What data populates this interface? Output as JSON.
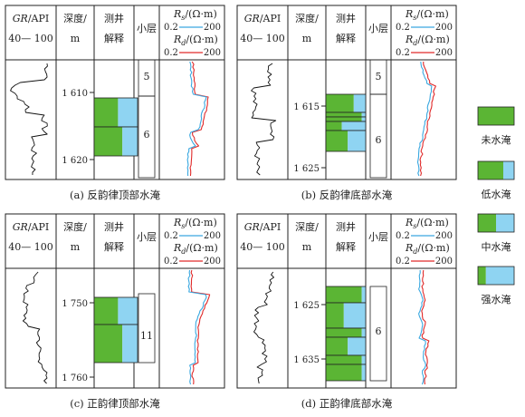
{
  "headers": {
    "gr_name": "GR",
    "gr_unit": "/API",
    "gr_scale": "40— 100",
    "depth_line1": "深度/",
    "depth_line2": "m",
    "interp_line1": "测井",
    "interp_line2": "解释",
    "layer": "小层",
    "rs_sym": "R",
    "rs_sub": "s",
    "rs_unit": "/(Ω·m)",
    "rd_sym": "R",
    "rd_sub": "d",
    "rd_unit": "/(Ω·m)",
    "res_scale_min": "0.2",
    "res_scale_max": "200"
  },
  "panels": [
    {
      "id": "a",
      "caption": "(a) 反韵律顶部水淹",
      "depth_ticks": [
        "1 610",
        "1 620"
      ],
      "layers": [
        "5",
        "6"
      ]
    },
    {
      "id": "b",
      "caption": "(b) 反韵律底部水淹",
      "depth_ticks": [
        "1 615",
        "1 625"
      ],
      "layers": [
        "5",
        "6"
      ]
    },
    {
      "id": "c",
      "caption": "(c) 正韵律顶部水淹",
      "depth_ticks": [
        "1 750",
        "1 760"
      ],
      "layers": [
        "11"
      ]
    },
    {
      "id": "d",
      "caption": "(d) 正韵律底部水淹",
      "depth_ticks": [
        "1 625",
        "1 635"
      ],
      "layers": [
        "6"
      ]
    }
  ],
  "legend": [
    {
      "label": "未水淹",
      "water_fraction": 0.0
    },
    {
      "label": "低水淹",
      "water_fraction": 0.3
    },
    {
      "label": "中水淹",
      "water_fraction": 0.5
    },
    {
      "label": "强水淹",
      "water_fraction": 0.78
    }
  ],
  "colors": {
    "oil": "#5bb534",
    "water": "#8fd4f2",
    "rs_curve": "#3aa8e0",
    "rd_curve": "#e02a2a",
    "border": "#222222"
  }
}
